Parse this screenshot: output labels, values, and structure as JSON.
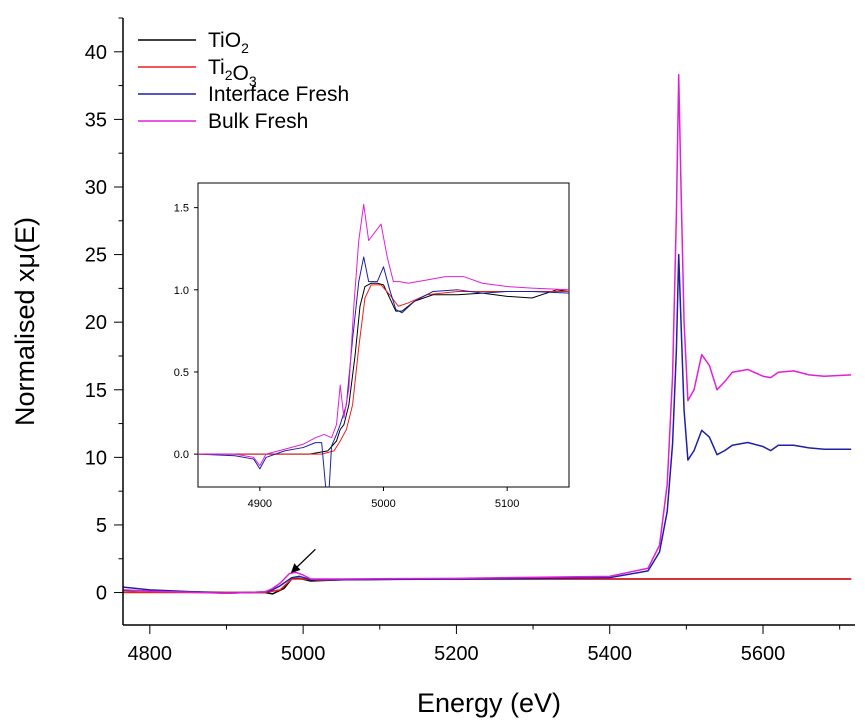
{
  "chart_data": [
    {
      "id": "main",
      "type": "line",
      "title": "",
      "xlabel": "Energy (eV)",
      "ylabel": "Normalised xμ(E)",
      "xlim": [
        4765,
        5720
      ],
      "ylim": [
        -2.4,
        42.5
      ],
      "xticks": [
        4800,
        5000,
        5200,
        5400,
        5600
      ],
      "yticks": [
        0,
        5,
        10,
        15,
        20,
        25,
        30,
        35,
        40
      ],
      "grid": false,
      "legend": {
        "position": "top-left",
        "entries": [
          {
            "series": "tio2",
            "parts": [
              {
                "t": "TiO"
              },
              {
                "t": "2",
                "sub": true
              }
            ]
          },
          {
            "series": "ti2o3",
            "parts": [
              {
                "t": "Ti"
              },
              {
                "t": "2",
                "sub": true
              },
              {
                "t": "O"
              },
              {
                "t": "3",
                "sub": true
              }
            ]
          },
          {
            "series": "interface",
            "parts": [
              {
                "t": "Interface Fresh"
              }
            ]
          },
          {
            "series": "bulk",
            "parts": [
              {
                "t": "Bulk Fresh"
              }
            ]
          }
        ]
      },
      "series": [
        {
          "key": "tio2",
          "name": "TiO2",
          "color": "#000000",
          "points": [
            [
              4765,
              0.15
            ],
            [
              4900,
              0.0
            ],
            [
              4950,
              0.0
            ],
            [
              4960,
              -0.1
            ],
            [
              4975,
              0.3
            ],
            [
              4985,
              1.0
            ],
            [
              4995,
              1.05
            ],
            [
              5010,
              0.85
            ],
            [
              5050,
              0.95
            ],
            [
              5150,
              1.0
            ],
            [
              5300,
              1.0
            ],
            [
              5450,
              1.0
            ],
            [
              5715,
              1.0
            ]
          ]
        },
        {
          "key": "ti2o3",
          "name": "Ti2O3",
          "color": "#e8211e",
          "points": [
            [
              4765,
              0.0
            ],
            [
              4950,
              0.0
            ],
            [
              4970,
              0.2
            ],
            [
              4985,
              1.0
            ],
            [
              5000,
              1.0
            ],
            [
              5020,
              0.9
            ],
            [
              5100,
              1.0
            ],
            [
              5450,
              1.0
            ],
            [
              5715,
              1.0
            ]
          ]
        },
        {
          "key": "interface",
          "name": "Interface Fresh",
          "color": "#1f1fa8",
          "points": [
            [
              4765,
              0.4
            ],
            [
              4800,
              0.2
            ],
            [
              4900,
              -0.05
            ],
            [
              4950,
              0.05
            ],
            [
              4960,
              0.2
            ],
            [
              4970,
              0.5
            ],
            [
              4985,
              1.1
            ],
            [
              4995,
              1.2
            ],
            [
              5010,
              0.95
            ],
            [
              5050,
              0.95
            ],
            [
              5200,
              1.0
            ],
            [
              5400,
              1.1
            ],
            [
              5450,
              1.6
            ],
            [
              5465,
              3.0
            ],
            [
              5475,
              6.0
            ],
            [
              5482,
              11.0
            ],
            [
              5487,
              18.0
            ],
            [
              5490,
              25.0
            ],
            [
              5493,
              20.0
            ],
            [
              5497,
              13.5
            ],
            [
              5502,
              9.8
            ],
            [
              5510,
              10.5
            ],
            [
              5520,
              12.0
            ],
            [
              5530,
              11.5
            ],
            [
              5540,
              10.2
            ],
            [
              5550,
              10.5
            ],
            [
              5560,
              10.9
            ],
            [
              5580,
              11.1
            ],
            [
              5600,
              10.8
            ],
            [
              5610,
              10.5
            ],
            [
              5620,
              10.9
            ],
            [
              5640,
              10.9
            ],
            [
              5660,
              10.7
            ],
            [
              5680,
              10.6
            ],
            [
              5715,
              10.6
            ]
          ]
        },
        {
          "key": "bulk",
          "name": "Bulk Fresh",
          "color": "#e020d8",
          "points": [
            [
              4765,
              0.2
            ],
            [
              4800,
              0.1
            ],
            [
              4900,
              -0.05
            ],
            [
              4950,
              0.05
            ],
            [
              4960,
              0.3
            ],
            [
              4970,
              0.7
            ],
            [
              4982,
              1.4
            ],
            [
              4990,
              1.5
            ],
            [
              5000,
              1.3
            ],
            [
              5010,
              1.0
            ],
            [
              5050,
              1.0
            ],
            [
              5200,
              1.05
            ],
            [
              5400,
              1.2
            ],
            [
              5450,
              1.8
            ],
            [
              5465,
              3.5
            ],
            [
              5475,
              8.0
            ],
            [
              5482,
              16.0
            ],
            [
              5487,
              28.0
            ],
            [
              5490,
              38.3
            ],
            [
              5493,
              30.0
            ],
            [
              5497,
              20.0
            ],
            [
              5502,
              14.2
            ],
            [
              5510,
              15.0
            ],
            [
              5520,
              17.6
            ],
            [
              5530,
              16.8
            ],
            [
              5540,
              15.0
            ],
            [
              5550,
              15.6
            ],
            [
              5560,
              16.3
            ],
            [
              5580,
              16.5
            ],
            [
              5600,
              16.0
            ],
            [
              5610,
              15.9
            ],
            [
              5620,
              16.3
            ],
            [
              5640,
              16.4
            ],
            [
              5660,
              16.1
            ],
            [
              5680,
              16.0
            ],
            [
              5715,
              16.1
            ]
          ]
        }
      ]
    },
    {
      "id": "inset",
      "type": "line",
      "title": "",
      "xlabel": "",
      "ylabel": "",
      "xlim": [
        4850,
        5150
      ],
      "ylim": [
        -0.2,
        1.65
      ],
      "xticks": [
        4900,
        5000,
        5100
      ],
      "yticks": [
        0.0,
        0.5,
        1.0,
        1.5
      ],
      "ytick_labels": [
        "0.0",
        "0.5",
        "1.0",
        "1.5"
      ],
      "grid": false,
      "annotation": {
        "type": "arrow",
        "from": "main",
        "points_to": [
          5016,
          3.2
        ],
        "origin": [
          4985,
          1.5
        ]
      },
      "series": [
        {
          "key": "tio2",
          "name": "TiO2",
          "color": "#000000",
          "points": [
            [
              4850,
              0.0
            ],
            [
              4940,
              0.0
            ],
            [
              4955,
              0.02
            ],
            [
              4962,
              0.08
            ],
            [
              4965,
              0.15
            ],
            [
              4968,
              0.18
            ],
            [
              4972,
              0.3
            ],
            [
              4977,
              0.6
            ],
            [
              4981,
              0.9
            ],
            [
              4985,
              1.02
            ],
            [
              4990,
              1.04
            ],
            [
              4995,
              1.04
            ],
            [
              5000,
              1.03
            ],
            [
              5005,
              0.95
            ],
            [
              5010,
              0.87
            ],
            [
              5015,
              0.87
            ],
            [
              5025,
              0.93
            ],
            [
              5040,
              0.97
            ],
            [
              5060,
              0.97
            ],
            [
              5080,
              0.98
            ],
            [
              5100,
              0.96
            ],
            [
              5120,
              0.95
            ],
            [
              5140,
              1.0
            ],
            [
              5150,
              0.99
            ]
          ]
        },
        {
          "key": "ti2o3",
          "name": "Ti2O3",
          "color": "#e8211e",
          "points": [
            [
              4850,
              0.0
            ],
            [
              4950,
              0.0
            ],
            [
              4960,
              0.02
            ],
            [
              4965,
              0.08
            ],
            [
              4970,
              0.15
            ],
            [
              4975,
              0.3
            ],
            [
              4980,
              0.65
            ],
            [
              4985,
              0.95
            ],
            [
              4990,
              1.03
            ],
            [
              4998,
              1.03
            ],
            [
              5005,
              0.97
            ],
            [
              5012,
              0.9
            ],
            [
              5020,
              0.92
            ],
            [
              5035,
              0.97
            ],
            [
              5060,
              0.99
            ],
            [
              5100,
              0.99
            ],
            [
              5150,
              0.99
            ]
          ]
        },
        {
          "key": "interface",
          "name": "Interface Fresh",
          "color": "#1f1fa8",
          "points": [
            [
              4850,
              0.0
            ],
            [
              4880,
              -0.01
            ],
            [
              4895,
              -0.03
            ],
            [
              4900,
              -0.09
            ],
            [
              4905,
              -0.02
            ],
            [
              4920,
              0.02
            ],
            [
              4935,
              0.04
            ],
            [
              4945,
              0.07
            ],
            [
              4950,
              0.07
            ],
            [
              4955,
              -0.35
            ],
            [
              4958,
              0.05
            ],
            [
              4962,
              0.12
            ],
            [
              4965,
              0.18
            ],
            [
              4970,
              0.3
            ],
            [
              4975,
              0.7
            ],
            [
              4980,
              1.05
            ],
            [
              4984,
              1.2
            ],
            [
              4988,
              1.05
            ],
            [
              4995,
              1.05
            ],
            [
              5000,
              1.14
            ],
            [
              5005,
              1.0
            ],
            [
              5010,
              0.88
            ],
            [
              5015,
              0.86
            ],
            [
              5025,
              0.93
            ],
            [
              5040,
              0.99
            ],
            [
              5060,
              1.0
            ],
            [
              5080,
              0.98
            ],
            [
              5100,
              0.99
            ],
            [
              5120,
              0.99
            ],
            [
              5150,
              0.98
            ]
          ]
        },
        {
          "key": "bulk",
          "name": "Bulk Fresh",
          "color": "#e020d8",
          "points": [
            [
              4850,
              0.0
            ],
            [
              4880,
              0.0
            ],
            [
              4895,
              -0.02
            ],
            [
              4900,
              -0.07
            ],
            [
              4905,
              0.0
            ],
            [
              4920,
              0.03
            ],
            [
              4935,
              0.06
            ],
            [
              4945,
              0.1
            ],
            [
              4952,
              0.12
            ],
            [
              4958,
              0.1
            ],
            [
              4962,
              0.18
            ],
            [
              4965,
              0.42
            ],
            [
              4968,
              0.22
            ],
            [
              4972,
              0.4
            ],
            [
              4976,
              0.9
            ],
            [
              4980,
              1.3
            ],
            [
              4984,
              1.52
            ],
            [
              4988,
              1.3
            ],
            [
              4993,
              1.35
            ],
            [
              4998,
              1.4
            ],
            [
              5003,
              1.2
            ],
            [
              5008,
              1.05
            ],
            [
              5013,
              1.05
            ],
            [
              5020,
              1.04
            ],
            [
              5035,
              1.06
            ],
            [
              5050,
              1.08
            ],
            [
              5065,
              1.08
            ],
            [
              5080,
              1.04
            ],
            [
              5100,
              1.02
            ],
            [
              5120,
              1.01
            ],
            [
              5150,
              1.0
            ]
          ]
        }
      ]
    }
  ]
}
